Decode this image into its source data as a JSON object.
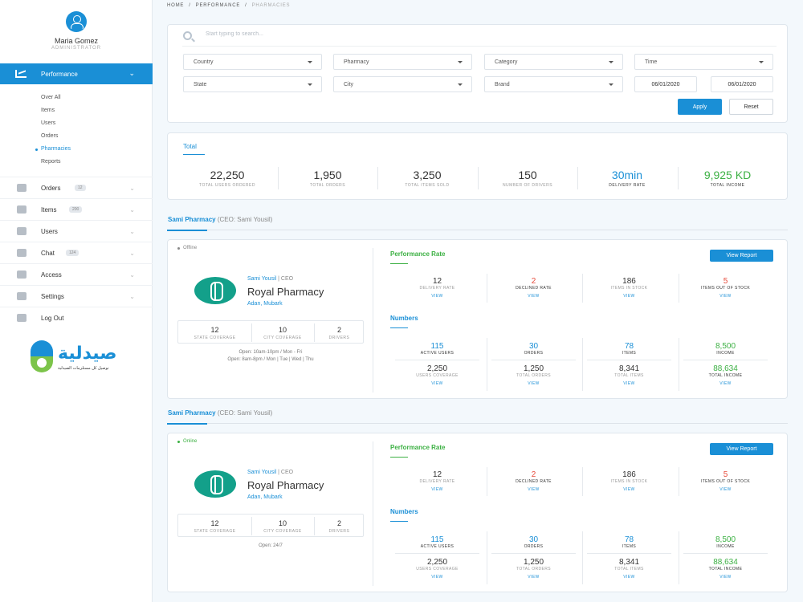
{
  "user": {
    "name": "Maria Gomez",
    "role": "ADMINISTRATOR"
  },
  "sidebar": {
    "active": "Performance",
    "sub": [
      "Over All",
      "Items",
      "Users",
      "Orders",
      "Pharmacies",
      "Reports"
    ],
    "active_sub": "Pharmacies",
    "nav": [
      {
        "label": "Orders",
        "badge": "12"
      },
      {
        "label": "Items",
        "badge": "200"
      },
      {
        "label": "Users",
        "badge": ""
      },
      {
        "label": "Chat",
        "badge": "124"
      },
      {
        "label": "Access",
        "badge": ""
      },
      {
        "label": "Settings",
        "badge": ""
      },
      {
        "label": "Log Out",
        "badge": ""
      }
    ],
    "logo": {
      "arabic": "صيدلية",
      "tagline": "توصيل كل مستلزمات الصيدلية"
    }
  },
  "breadcrumb": [
    "HOME",
    "PERFORMANCE",
    "PHARMACIES"
  ],
  "filters": {
    "search_placeholder": "Start typing to search...",
    "selects": [
      "Country",
      "Pharmacy",
      "Category",
      "Time",
      "State",
      "City",
      "Brand"
    ],
    "date_from": "06/01/2020",
    "date_to": "06/01/2020",
    "apply": "Apply",
    "reset": "Reset"
  },
  "total": {
    "title": "Total",
    "stats": [
      {
        "value": "22,250",
        "label": "TOTAL USERS ORDERED"
      },
      {
        "value": "1,950",
        "label": "TOTAL ORDERS"
      },
      {
        "value": "3,250",
        "label": "TOTAL ITEMS SOLD"
      },
      {
        "value": "150",
        "label": "NUMBER OF DRIVERS"
      },
      {
        "value": "30min",
        "label": "DELIVERY RATE"
      },
      {
        "value": "9,925 KD",
        "label": "TOTAL INCOME"
      }
    ]
  },
  "pharmacies": [
    {
      "section_title": "Sami Pharmacy",
      "section_ceo": "(CEO: Sami Yousil)",
      "status": "Offline",
      "ceo_name": "Sami Yousil",
      "ceo_role": "| CEO",
      "name": "Royal Pharmacy",
      "location": "Adan, Mubark",
      "coverage": [
        {
          "value": "12",
          "label": "STATE COVERAGE"
        },
        {
          "value": "10",
          "label": "CITY COVERAGE"
        },
        {
          "value": "2",
          "label": "DRIVERS"
        }
      ],
      "hours": [
        "Open: 10am-10pm / Mon - Fri",
        "Open: 8am-8pm / Mon | Tue | Wed | Thu"
      ],
      "perf_title": "Performance Rate",
      "view_report": "View Report",
      "perf": [
        {
          "value": "12",
          "label": "DELIVERY RATE",
          "link": "VIEW"
        },
        {
          "value": "2",
          "label": "DECLINED RATE",
          "link": "VIEW"
        },
        {
          "value": "186",
          "label": "ITEMS IN STOCK",
          "link": "VIEW"
        },
        {
          "value": "5",
          "label": "ITEMS OUT OF STOCK",
          "link": "VIEW"
        }
      ],
      "numbers_title": "Numbers",
      "numbers_top": [
        {
          "value": "115",
          "label": "ACTIVE USERS"
        },
        {
          "value": "30",
          "label": "ORDERS"
        },
        {
          "value": "78",
          "label": "ITEMS"
        },
        {
          "value": "8,500",
          "label": "INCOME"
        }
      ],
      "numbers_bottom": [
        {
          "value": "2,250",
          "label": "USERS COVERAGE",
          "link": "VIEW"
        },
        {
          "value": "1,250",
          "label": "TOTAL ORDERS",
          "link": "VIEW"
        },
        {
          "value": "8,341",
          "label": "TOTAL ITEMS",
          "link": "VIEW"
        },
        {
          "value": "88,634",
          "label": "TOTAL INCOME",
          "link": "VIEW"
        }
      ]
    },
    {
      "section_title": "Sami Pharmacy",
      "section_ceo": "(CEO: Sami Yousil)",
      "status": "Online",
      "ceo_name": "Sami Yousil",
      "ceo_role": "| CEO",
      "name": "Royal Pharmacy",
      "location": "Adan, Mubark",
      "coverage": [
        {
          "value": "12",
          "label": "STATE COVERAGE"
        },
        {
          "value": "10",
          "label": "CITY COVERAGE"
        },
        {
          "value": "2",
          "label": "DRIVERS"
        }
      ],
      "hours": [
        "Open: 24/7"
      ],
      "perf_title": "Performance Rate",
      "view_report": "View Report",
      "perf": [
        {
          "value": "12",
          "label": "DELIVERY RATE",
          "link": "VIEW"
        },
        {
          "value": "2",
          "label": "DECLINED RATE",
          "link": "VIEW"
        },
        {
          "value": "186",
          "label": "ITEMS IN STOCK",
          "link": "VIEW"
        },
        {
          "value": "5",
          "label": "ITEMS OUT OF STOCK",
          "link": "VIEW"
        }
      ],
      "numbers_title": "Numbers",
      "numbers_top": [
        {
          "value": "115",
          "label": "ACTIVE USERS"
        },
        {
          "value": "30",
          "label": "ORDERS"
        },
        {
          "value": "78",
          "label": "ITEMS"
        },
        {
          "value": "8,500",
          "label": "INCOME"
        }
      ],
      "numbers_bottom": [
        {
          "value": "2,250",
          "label": "USERS COVERAGE",
          "link": "VIEW"
        },
        {
          "value": "1,250",
          "label": "TOTAL ORDERS",
          "link": "VIEW"
        },
        {
          "value": "8,341",
          "label": "TOTAL ITEMS",
          "link": "VIEW"
        },
        {
          "value": "88,634",
          "label": "TOTAL INCOME",
          "link": "VIEW"
        }
      ]
    }
  ],
  "colors": {
    "accent": "#1a8fd6",
    "green": "#3cb043",
    "red": "#e74c3c"
  }
}
